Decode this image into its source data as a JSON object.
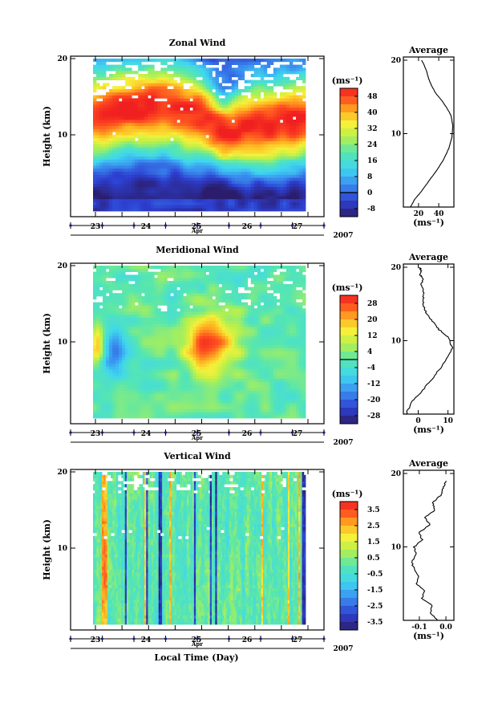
{
  "chart_data": [
    {
      "type": "heatmap",
      "title": "Zonal Wind",
      "ylabel": "Height (km)",
      "yticks": [
        10,
        20
      ],
      "ylim": [
        0,
        20
      ],
      "xlabel": "Apr",
      "xticks": [
        "23",
        "24",
        "25",
        "26",
        "27"
      ],
      "year": "2007",
      "colorbar": {
        "unit": "(ms⁻¹)",
        "ticks": [
          "48",
          "40",
          "32",
          "24",
          "16",
          "8",
          "0",
          "-8"
        ],
        "vmin": -12,
        "vmax": 52,
        "zero_line": 0
      },
      "profile": {
        "title": "Average",
        "xlabel": "(ms⁻¹)",
        "xticks": [
          "20",
          "40"
        ],
        "xtick_values": [
          20,
          40
        ],
        "xlim": [
          5,
          55
        ],
        "yticks": [
          10,
          20
        ],
        "x": [
          12,
          16,
          22,
          30,
          38,
          45,
          50,
          53,
          54,
          52,
          48,
          43,
          37,
          33,
          30,
          28,
          25,
          23
        ],
        "y": [
          0,
          1,
          2,
          3.5,
          5,
          6.5,
          8,
          9.5,
          11,
          12.5,
          13.5,
          14.5,
          15.5,
          16.5,
          17.5,
          18.5,
          19.5,
          20
        ]
      },
      "field": {
        "kind": "zonal",
        "lo": -8,
        "hi": 52
      }
    },
    {
      "type": "heatmap",
      "title": "Meridional Wind",
      "ylabel": "Height (km)",
      "yticks": [
        10,
        20
      ],
      "ylim": [
        0,
        20
      ],
      "xlabel": "Apr",
      "xticks": [
        "23",
        "24",
        "25",
        "26",
        "27"
      ],
      "year": "2007",
      "colorbar": {
        "unit": "(ms⁻¹)",
        "ticks": [
          "28",
          "20",
          "12",
          "4",
          "-4",
          "-12",
          "-20",
          "-28"
        ],
        "vmin": -32,
        "vmax": 32,
        "zero_line": 0
      },
      "profile": {
        "title": "Average",
        "xlabel": "(ms⁻¹)",
        "xticks": [
          "0",
          "10"
        ],
        "xtick_values": [
          0,
          10
        ],
        "xlim": [
          -5,
          12
        ],
        "yticks": [
          10,
          20
        ],
        "x": [
          -4,
          -3,
          -1.5,
          1,
          4,
          7,
          9.5,
          11.5,
          10,
          7,
          5,
          3,
          2,
          1.5,
          2,
          1,
          1.5,
          0.5,
          1,
          0.5
        ],
        "y": [
          0,
          1,
          2,
          3,
          4.5,
          6,
          7.5,
          9,
          10.5,
          11.5,
          12.5,
          13.5,
          14.5,
          15.5,
          16.5,
          17.5,
          18.5,
          19,
          19.5,
          20
        ]
      },
      "field": {
        "kind": "meridional",
        "lo": -30,
        "hi": 30
      }
    },
    {
      "type": "heatmap",
      "title": "Vertical Wind",
      "ylabel": "Height (km)",
      "yticks": [
        10,
        20
      ],
      "ylim": [
        0,
        20
      ],
      "xlabel": "Apr",
      "xticks": [
        "23",
        "24",
        "25",
        "26",
        "27"
      ],
      "year": "2007",
      "colorbar": {
        "unit": "(ms⁻¹)",
        "ticks": [
          "3.5",
          "2.5",
          "1.5",
          "0.5",
          "-0.5",
          "-1.5",
          "-2.5",
          "-3.5"
        ],
        "vmin": -4,
        "vmax": 4,
        "zero_line": null
      },
      "profile": {
        "title": "Average",
        "xlabel": "(ms⁻¹)",
        "xticks": [
          "-0.1",
          "0.0"
        ],
        "xtick_values": [
          -0.1,
          0.0
        ],
        "xlim": [
          -0.16,
          0.03
        ],
        "yticks": [
          10,
          20
        ],
        "x": [
          -0.03,
          -0.06,
          -0.05,
          -0.09,
          -0.08,
          -0.11,
          -0.1,
          -0.12,
          -0.13,
          -0.11,
          -0.12,
          -0.09,
          -0.1,
          -0.06,
          -0.08,
          -0.04,
          -0.05,
          -0.02,
          -0.01,
          0.0
        ],
        "y": [
          0,
          1,
          2,
          3,
          4,
          5,
          6,
          7,
          8,
          9,
          10,
          11,
          12,
          13,
          14,
          15,
          16,
          17,
          18,
          19
        ]
      },
      "field": {
        "kind": "vertical",
        "lo": -1.5,
        "hi": 1.5
      }
    }
  ],
  "xlabel_bottom": "Local Time (Day)"
}
